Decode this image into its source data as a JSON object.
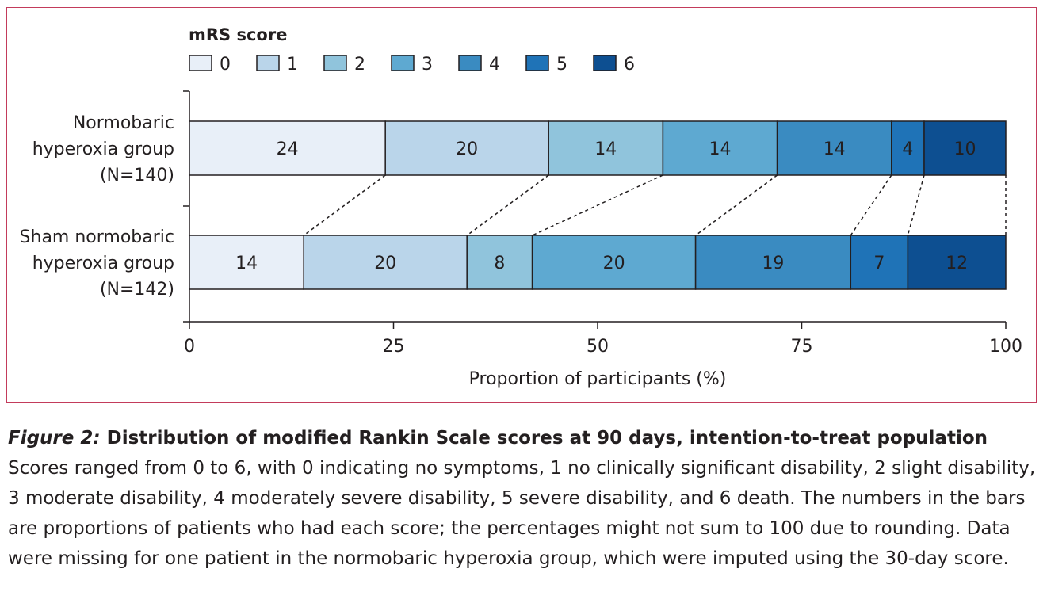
{
  "chart_data": {
    "type": "bar",
    "orientation": "horizontal",
    "stacked": true,
    "legend_title": "mRS score",
    "legend_position": "top-left",
    "legend_entries": [
      "0",
      "1",
      "2",
      "3",
      "4",
      "5",
      "6"
    ],
    "colors": [
      "#e8eff8",
      "#bad5ea",
      "#90c4dc",
      "#5ea9d1",
      "#3a8bc1",
      "#1f73b7",
      "#0d4f91"
    ],
    "label_colors": [
      "#231f20",
      "#231f20",
      "#231f20",
      "#231f20",
      "#231f20",
      "#ffffff",
      "#ffffff"
    ],
    "xlabel": "Proportion of participants (%)",
    "xlim": [
      0,
      100
    ],
    "xticks": [
      "0",
      "25",
      "50",
      "75",
      "100"
    ],
    "grid": false,
    "groups": [
      {
        "label_lines": [
          "Normobaric",
          "hyperoxia group",
          "(N=140)"
        ],
        "values": [
          24,
          20,
          14,
          14,
          14,
          4,
          10
        ]
      },
      {
        "label_lines": [
          "Sham normobaric",
          "hyperoxia group",
          "(N=142)"
        ],
        "values": [
          14,
          20,
          8,
          20,
          19,
          7,
          12
        ]
      }
    ]
  },
  "caption": {
    "label": "Figure 2:",
    "title": " Distribution of modified Rankin Scale scores at 90 days, intention-to-treat population",
    "body": "Scores ranged from 0 to 6, with 0 indicating no symptoms, 1 no clinically significant disability, 2 slight disability, 3 moderate disability, 4 moderately severe disability, 5 severe disability, and 6 death. The numbers in the bars are proportions of patients who had each score; the percentages might not sum to 100 due to rounding. Data were missing for one patient in the normobaric hyperoxia group, which were imputed using the 30-day score."
  }
}
